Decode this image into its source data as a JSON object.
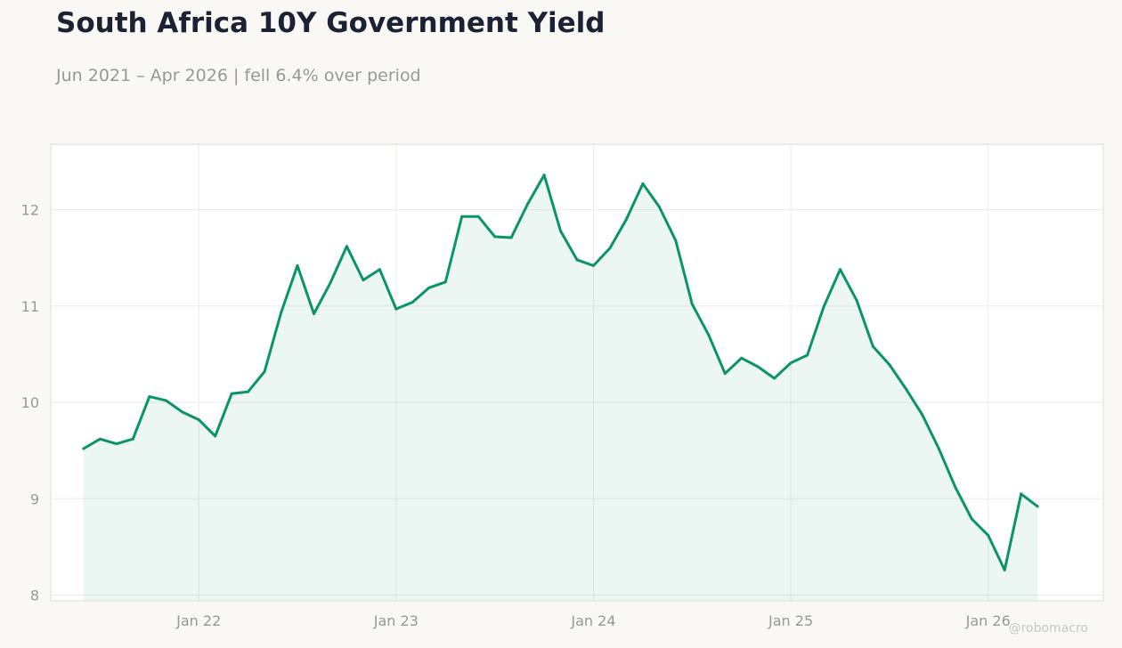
{
  "header": {
    "title": "South Africa 10Y Government Yield",
    "subtitle": "Jun 2021 – Apr 2026 | fell 6.4% over period"
  },
  "watermark": "@robomacro",
  "colors": {
    "line": "#0a9467",
    "fill": "#0a9467",
    "grid": "#ecebe6",
    "plot_border": "#dddbd4",
    "plot_bg": "#ffffff",
    "page_bg": "#f9f8f5"
  },
  "chart_data": {
    "type": "area",
    "x": [
      "2021-06",
      "2021-07",
      "2021-08",
      "2021-09",
      "2021-10",
      "2021-11",
      "2021-12",
      "2022-01",
      "2022-02",
      "2022-03",
      "2022-04",
      "2022-05",
      "2022-06",
      "2022-07",
      "2022-08",
      "2022-09",
      "2022-10",
      "2022-11",
      "2022-12",
      "2023-01",
      "2023-02",
      "2023-03",
      "2023-04",
      "2023-05",
      "2023-06",
      "2023-07",
      "2023-08",
      "2023-09",
      "2023-10",
      "2023-11",
      "2023-12",
      "2024-01",
      "2024-02",
      "2024-03",
      "2024-04",
      "2024-05",
      "2024-06",
      "2024-07",
      "2024-08",
      "2024-09",
      "2024-10",
      "2024-11",
      "2024-12",
      "2025-01",
      "2025-02",
      "2025-03",
      "2025-04",
      "2025-05",
      "2025-06",
      "2025-07",
      "2025-08",
      "2025-09",
      "2025-10",
      "2025-11",
      "2025-12",
      "2026-01",
      "2026-02",
      "2026-03",
      "2026-04"
    ],
    "values": [
      9.52,
      9.62,
      9.57,
      9.62,
      10.06,
      10.02,
      9.9,
      9.82,
      9.65,
      10.09,
      10.11,
      10.32,
      10.93,
      11.42,
      10.92,
      11.24,
      11.62,
      11.27,
      11.38,
      10.97,
      11.04,
      11.19,
      11.25,
      11.93,
      11.93,
      11.72,
      11.71,
      12.06,
      12.36,
      11.78,
      11.48,
      11.42,
      11.6,
      11.9,
      12.27,
      12.03,
      11.68,
      11.02,
      10.7,
      10.3,
      10.46,
      10.37,
      10.25,
      10.41,
      10.49,
      10.99,
      11.38,
      11.06,
      10.58,
      10.39,
      10.14,
      9.87,
      9.52,
      9.12,
      8.79,
      8.62,
      8.26,
      9.05,
      8.92
    ],
    "x_ticks": [
      {
        "date": "2022-01",
        "label": "Jan 22"
      },
      {
        "date": "2023-01",
        "label": "Jan 23"
      },
      {
        "date": "2024-01",
        "label": "Jan 24"
      },
      {
        "date": "2025-01",
        "label": "Jan 25"
      },
      {
        "date": "2026-01",
        "label": "Jan 26"
      }
    ],
    "y_ticks": [
      8,
      9,
      10,
      11,
      12
    ],
    "xlim": [
      "2021-04",
      "2026-08"
    ],
    "ylim": [
      7.94,
      12.68
    ],
    "grid": true,
    "title": "South Africa 10Y Government Yield",
    "xlabel": "",
    "ylabel": ""
  }
}
